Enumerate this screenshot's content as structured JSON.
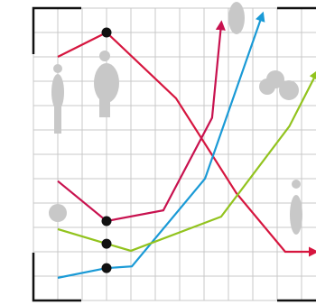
{
  "chart_data": {
    "type": "line",
    "grid": true,
    "highlight_x": 3,
    "xlim": [
      0,
      11.6
    ],
    "ylim": [
      0,
      12
    ],
    "xticks": [
      0,
      1,
      2,
      3,
      4,
      5,
      6,
      7,
      8,
      9,
      10,
      11
    ],
    "yticks": [
      0,
      1,
      2,
      3,
      4,
      5,
      6,
      7,
      8,
      9,
      10,
      11,
      12
    ],
    "series": [
      {
        "color": "#d6163f",
        "x": [
          1,
          3,
          5.85,
          8.33,
          10.33,
          11.5
        ],
        "values": [
          10,
          11,
          8.3,
          4.4,
          2,
          2
        ]
      },
      {
        "color": "#c8124f",
        "x": [
          1,
          3,
          5.33,
          7.33,
          7.7
        ],
        "values": [
          4.9,
          3.26,
          3.7,
          7.5,
          11.3
        ]
      },
      {
        "color": "#1a9ad6",
        "x": [
          1,
          3,
          4.04,
          7.04,
          9.37
        ],
        "values": [
          0.93,
          1.33,
          1.4,
          5,
          11.67
        ]
      },
      {
        "color": "#92c31e",
        "x": [
          1,
          3,
          4,
          7.7,
          10.5,
          11.6
        ],
        "values": [
          2.93,
          2.33,
          2.04,
          3.44,
          7.15,
          9.3
        ]
      }
    ]
  }
}
